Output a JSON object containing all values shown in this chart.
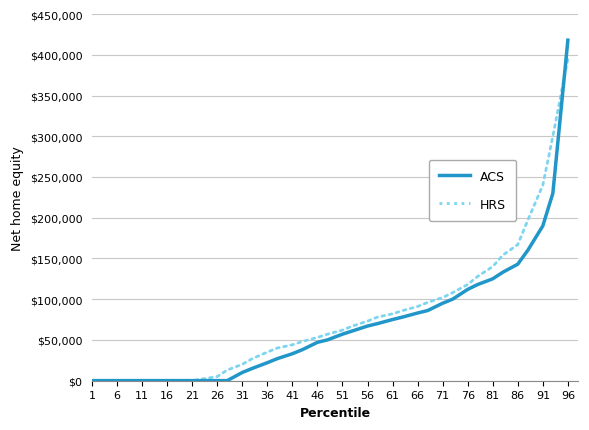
{
  "title": "",
  "xlabel": "Percentile",
  "ylabel": "Net home equity",
  "xticks": [
    1,
    6,
    11,
    16,
    21,
    26,
    31,
    36,
    41,
    46,
    51,
    56,
    61,
    66,
    71,
    76,
    81,
    86,
    91,
    96
  ],
  "yticks": [
    0,
    50000,
    100000,
    150000,
    200000,
    250000,
    300000,
    350000,
    400000,
    450000
  ],
  "ylabels": [
    "$0",
    "$50,000",
    "$100,000",
    "$150,000",
    "$200,000",
    "$250,000",
    "$300,000",
    "$350,000",
    "$400,000",
    "$450,000"
  ],
  "xlim": [
    1,
    98
  ],
  "ylim": [
    0,
    450000
  ],
  "acs_color": "#2196c8",
  "hrs_color": "#7fd4f0",
  "background": "#ffffff",
  "grid_color": "#c8c8c8",
  "percentiles": [
    1,
    6,
    11,
    16,
    21,
    26,
    28,
    31,
    33,
    36,
    38,
    41,
    43,
    46,
    48,
    51,
    53,
    56,
    58,
    61,
    63,
    66,
    68,
    71,
    73,
    76,
    78,
    81,
    83,
    86,
    88,
    91,
    93,
    96
  ],
  "acs_values": [
    0,
    0,
    0,
    0,
    0,
    0,
    0,
    10000,
    15000,
    22000,
    27000,
    33000,
    38000,
    47000,
    50000,
    57000,
    61000,
    67000,
    70000,
    75000,
    78000,
    83000,
    86000,
    95000,
    100000,
    112000,
    118000,
    125000,
    133000,
    143000,
    160000,
    190000,
    230000,
    418000
  ],
  "hrs_values": [
    0,
    0,
    0,
    0,
    0,
    5000,
    13000,
    20000,
    27000,
    35000,
    40000,
    44000,
    48000,
    53000,
    57000,
    62000,
    67000,
    73000,
    78000,
    82000,
    86000,
    91000,
    96000,
    102000,
    108000,
    118000,
    128000,
    140000,
    154000,
    167000,
    197000,
    240000,
    300000,
    395000
  ]
}
